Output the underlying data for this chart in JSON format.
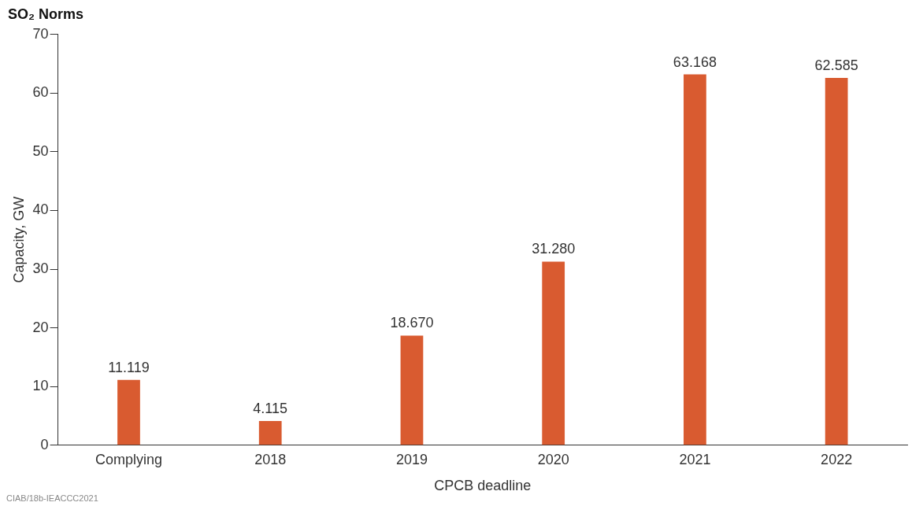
{
  "chart_data": {
    "type": "bar",
    "title": "SO₂ Norms",
    "xlabel": "CPCB deadline",
    "ylabel": "Capacity, GW",
    "categories": [
      "Complying",
      "2018",
      "2019",
      "2020",
      "2021",
      "2022"
    ],
    "values": [
      11.119,
      4.115,
      18.67,
      31.28,
      63.168,
      62.585
    ],
    "value_labels": [
      "11.119",
      "4.115",
      "18.670",
      "31.280",
      "63.168",
      "62.585"
    ],
    "color": "#d95b30",
    "ylim": [
      0,
      70
    ],
    "yticks": [
      0,
      10,
      20,
      30,
      40,
      50,
      60,
      70
    ],
    "grid": false,
    "legend": false,
    "annotations": [
      "CIAB/18b-IEACCC2021"
    ]
  }
}
